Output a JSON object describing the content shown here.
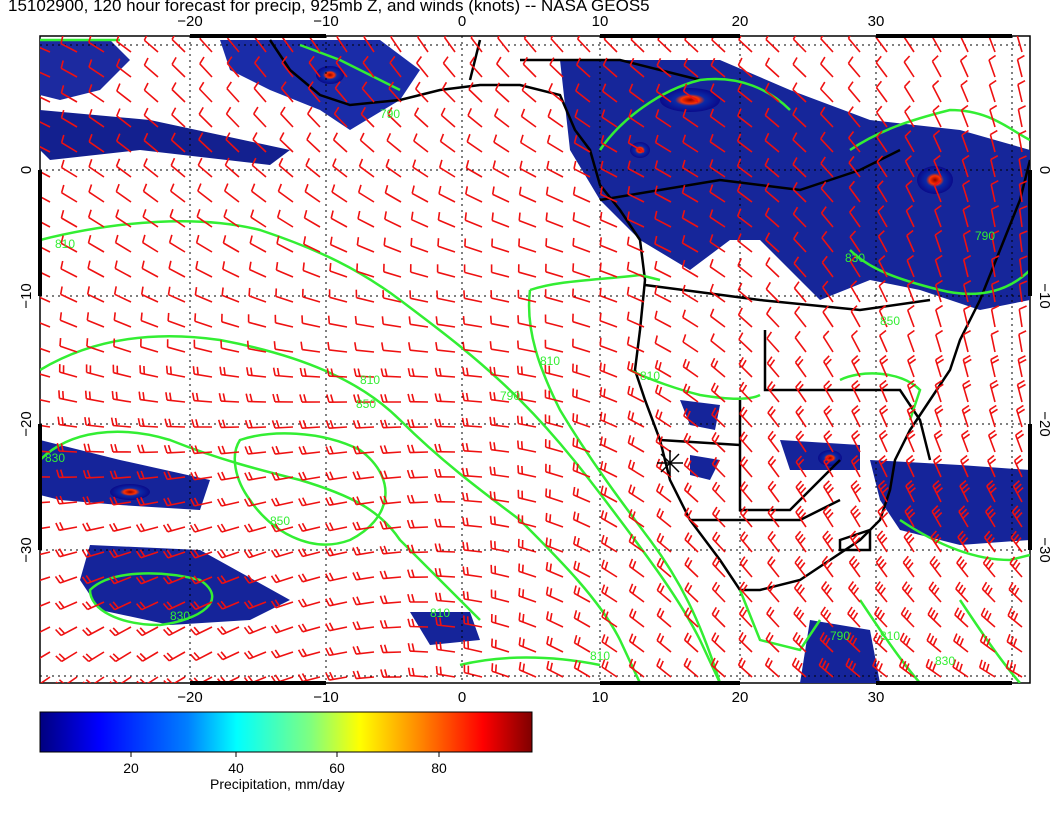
{
  "title": "15102900, 120 hour forecast for precip, 925mb Z, and winds (knots) -- NASA GEOS5",
  "map": {
    "lon_ticks": [
      "−20",
      "−10",
      "0",
      "10",
      "20",
      "30"
    ],
    "lat_ticks": [
      "0",
      "−10",
      "−20",
      "−30"
    ],
    "contour_labels": [
      "790",
      "810",
      "830",
      "850",
      "810",
      "790",
      "810",
      "850",
      "830",
      "810",
      "850",
      "830",
      "790",
      "810",
      "830",
      "810",
      "790",
      "810"
    ],
    "colors": {
      "contour": "#33ee33",
      "wind_barbs": "#ee1111",
      "coastline": "#000000",
      "precip_low": "#0a0a8a",
      "precip_high": "#8b0000"
    }
  },
  "colorbar": {
    "ticks": [
      "20",
      "40",
      "60",
      "80"
    ],
    "label": "Precipitation, mm/day",
    "range": [
      0,
      100
    ],
    "colors": [
      "#00007f",
      "#0000ff",
      "#007fff",
      "#00ffff",
      "#7fff7f",
      "#ffff00",
      "#ff7f00",
      "#ff0000",
      "#7f0000"
    ]
  }
}
